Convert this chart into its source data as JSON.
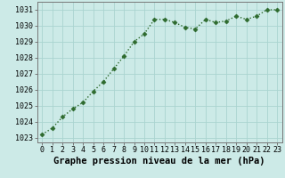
{
  "x": [
    0,
    1,
    2,
    3,
    4,
    5,
    6,
    7,
    8,
    9,
    10,
    11,
    12,
    13,
    14,
    15,
    16,
    17,
    18,
    19,
    20,
    21,
    22,
    23
  ],
  "y": [
    1023.2,
    1023.6,
    1024.3,
    1024.8,
    1025.2,
    1025.9,
    1026.5,
    1027.3,
    1028.1,
    1029.0,
    1029.5,
    1030.4,
    1030.4,
    1030.2,
    1029.9,
    1029.8,
    1030.4,
    1030.2,
    1030.3,
    1030.6,
    1030.4,
    1030.6,
    1031.0,
    1031.0
  ],
  "line_color": "#2d6a2d",
  "marker": "D",
  "marker_size": 2.5,
  "bg_color": "#cceae7",
  "grid_color": "#aad4d0",
  "xlabel": "Graphe pression niveau de la mer (hPa)",
  "xlabel_fontsize": 7.5,
  "ylim": [
    1022.7,
    1031.5
  ],
  "xlim": [
    -0.5,
    23.5
  ],
  "yticks": [
    1023,
    1024,
    1025,
    1026,
    1027,
    1028,
    1029,
    1030,
    1031
  ],
  "xticks": [
    0,
    1,
    2,
    3,
    4,
    5,
    6,
    7,
    8,
    9,
    10,
    11,
    12,
    13,
    14,
    15,
    16,
    17,
    18,
    19,
    20,
    21,
    22,
    23
  ],
  "tick_fontsize": 6.0,
  "line_width": 1.0
}
